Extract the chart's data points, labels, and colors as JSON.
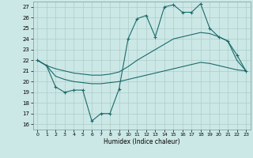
{
  "xlabel": "Humidex (Indice chaleur)",
  "xlim": [
    -0.5,
    23.5
  ],
  "ylim": [
    15.5,
    27.5
  ],
  "yticks": [
    16,
    17,
    18,
    19,
    20,
    21,
    22,
    23,
    24,
    25,
    26,
    27
  ],
  "xticks": [
    0,
    1,
    2,
    3,
    4,
    5,
    6,
    7,
    8,
    9,
    10,
    11,
    12,
    13,
    14,
    15,
    16,
    17,
    18,
    19,
    20,
    21,
    22,
    23
  ],
  "bg_color": "#cce8e6",
  "line_color": "#1a6b6b",
  "grid_color": "#aaccca",
  "line1_x": [
    0,
    1,
    2,
    3,
    4,
    5,
    6,
    7,
    8,
    9,
    10,
    11,
    12,
    13,
    14,
    15,
    16,
    17,
    18,
    19,
    20,
    21,
    22,
    23
  ],
  "line1_y": [
    22.0,
    21.5,
    19.5,
    19.0,
    19.2,
    19.2,
    16.3,
    17.0,
    17.0,
    19.3,
    24.0,
    25.9,
    26.2,
    24.2,
    27.0,
    27.2,
    26.5,
    26.5,
    27.3,
    25.0,
    24.2,
    23.8,
    22.5,
    21.0
  ],
  "line2_x": [
    0,
    1,
    2,
    3,
    4,
    5,
    6,
    7,
    8,
    9,
    10,
    11,
    12,
    13,
    14,
    15,
    16,
    17,
    18,
    19,
    20,
    21,
    22,
    23
  ],
  "line2_y": [
    22.0,
    21.5,
    21.2,
    21.0,
    20.8,
    20.7,
    20.6,
    20.6,
    20.7,
    20.9,
    21.4,
    22.0,
    22.5,
    23.0,
    23.5,
    24.0,
    24.2,
    24.4,
    24.6,
    24.5,
    24.2,
    23.8,
    22.0,
    21.0
  ],
  "line3_x": [
    0,
    1,
    2,
    3,
    4,
    5,
    6,
    7,
    8,
    9,
    10,
    11,
    12,
    13,
    14,
    15,
    16,
    17,
    18,
    19,
    20,
    21,
    22,
    23
  ],
  "line3_y": [
    22.0,
    21.5,
    20.5,
    20.2,
    20.0,
    19.9,
    19.8,
    19.8,
    19.9,
    20.0,
    20.2,
    20.4,
    20.6,
    20.8,
    21.0,
    21.2,
    21.4,
    21.6,
    21.8,
    21.7,
    21.5,
    21.3,
    21.1,
    21.0
  ]
}
